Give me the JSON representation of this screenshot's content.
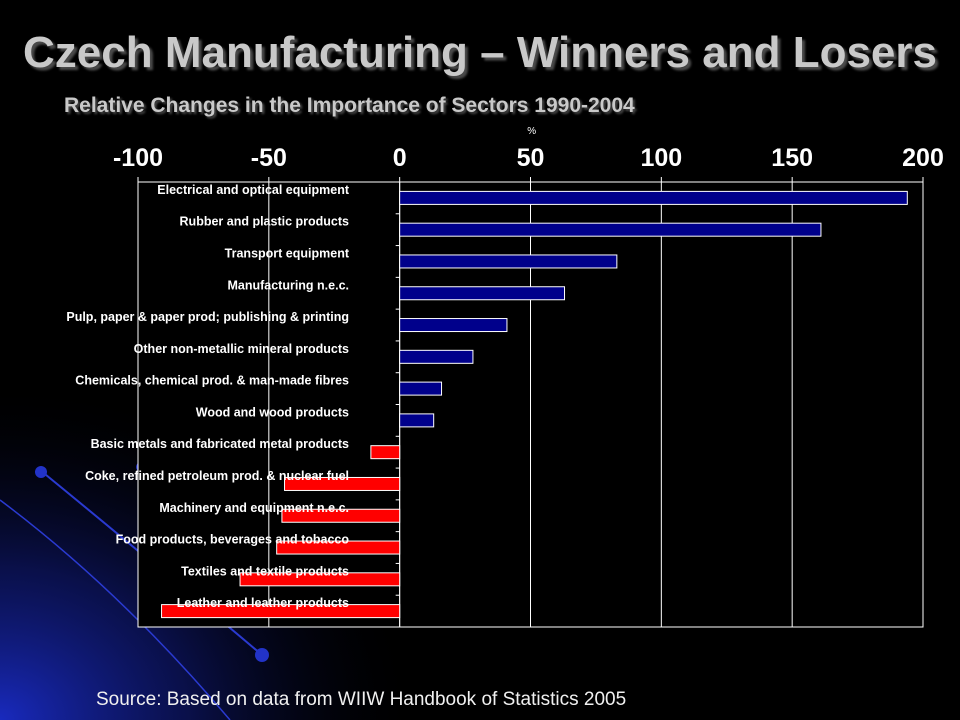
{
  "slide": {
    "title": "Czech Manufacturing – Winners and Losers",
    "subtitle": "Relative Changes in the Importance of Sectors 1990-2004",
    "source": "Source: Based on data from WIIW Handbook of Statistics 2005"
  },
  "colors": {
    "background": "#000000",
    "plot_background": "#000000",
    "axis": "#ffffff",
    "positive_bar": "#00008b",
    "negative_bar": "#ff0000",
    "category_text": "#ffffff",
    "decor_blue": "#1c2bb0"
  },
  "chart_data": {
    "type": "bar",
    "orientation": "horizontal",
    "title": "",
    "xlabel": "%",
    "ylabel": "",
    "xlim": [
      -100,
      200
    ],
    "xticks": [
      -100,
      -50,
      0,
      50,
      100,
      150,
      200
    ],
    "xtick_labels": [
      "-100",
      "-50",
      "0",
      "50",
      "100",
      "150",
      "200"
    ],
    "grid": true,
    "legend": "none",
    "categories": [
      "Electrical and optical equipment",
      "Rubber and plastic products",
      "Transport equipment",
      "Manufacturing n.e.c.",
      "Pulp, paper & paper prod; publishing & printing",
      "Other non-metallic mineral products",
      "Chemicals, chemical prod. & man-made fibres",
      "Wood and wood products",
      "Basic metals and fabricated metal products",
      "Coke, refined petroleum prod. & nuclear fuel",
      "Machinery and equipment n.e.c.",
      "Food products, beverages and tobacco",
      "Textiles and textile products",
      "Leather and leather products"
    ],
    "values": [
      194,
      161,
      83,
      63,
      41,
      28,
      16,
      13,
      -11,
      -44,
      -45,
      -47,
      -61,
      -91
    ]
  }
}
